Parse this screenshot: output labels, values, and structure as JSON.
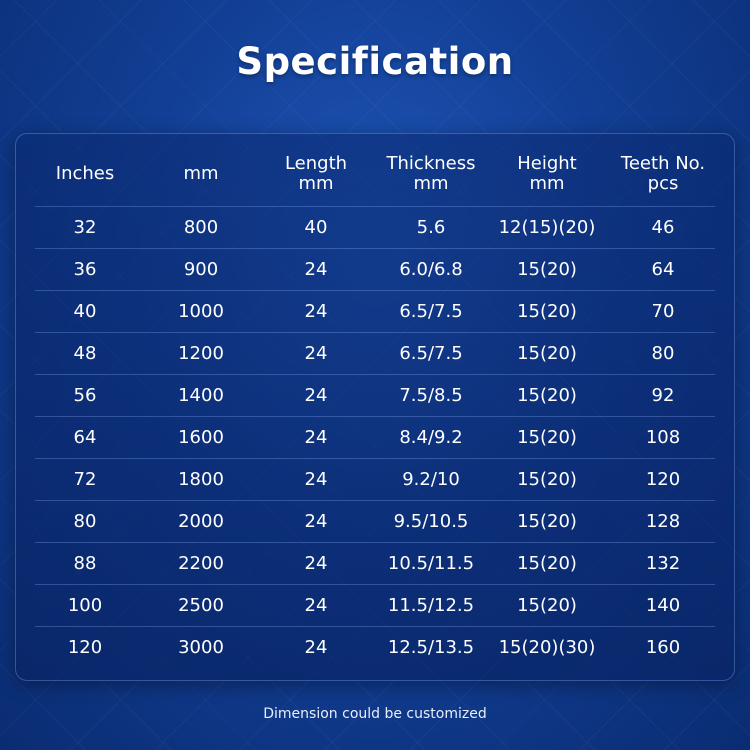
{
  "title": "Specification",
  "headers": [
    {
      "line1": "Inches",
      "line2": ""
    },
    {
      "line1": "mm",
      "line2": ""
    },
    {
      "line1": "Length",
      "line2": "mm"
    },
    {
      "line1": "Thickness",
      "line2": "mm"
    },
    {
      "line1": "Height",
      "line2": "mm"
    },
    {
      "line1": "Teeth No.",
      "line2": "pcs"
    }
  ],
  "rows": [
    [
      "32",
      "800",
      "40",
      "5.6",
      "12(15)(20)",
      "46"
    ],
    [
      "36",
      "900",
      "24",
      "6.0/6.8",
      "15(20)",
      "64"
    ],
    [
      "40",
      "1000",
      "24",
      "6.5/7.5",
      "15(20)",
      "70"
    ],
    [
      "48",
      "1200",
      "24",
      "6.5/7.5",
      "15(20)",
      "80"
    ],
    [
      "56",
      "1400",
      "24",
      "7.5/8.5",
      "15(20)",
      "92"
    ],
    [
      "64",
      "1600",
      "24",
      "8.4/9.2",
      "15(20)",
      "108"
    ],
    [
      "72",
      "1800",
      "24",
      "9.2/10",
      "15(20)",
      "120"
    ],
    [
      "80",
      "2000",
      "24",
      "9.5/10.5",
      "15(20)",
      "128"
    ],
    [
      "88",
      "2200",
      "24",
      "10.5/11.5",
      "15(20)",
      "132"
    ],
    [
      "100",
      "2500",
      "24",
      "11.5/12.5",
      "15(20)",
      "140"
    ],
    [
      "120",
      "3000",
      "24",
      "12.5/13.5",
      "15(20)(30)",
      "160"
    ]
  ],
  "footnote": "Dimension could be customized",
  "colors": {
    "background": "#123f95",
    "text": "#ffffff",
    "divider": "#96beff"
  }
}
